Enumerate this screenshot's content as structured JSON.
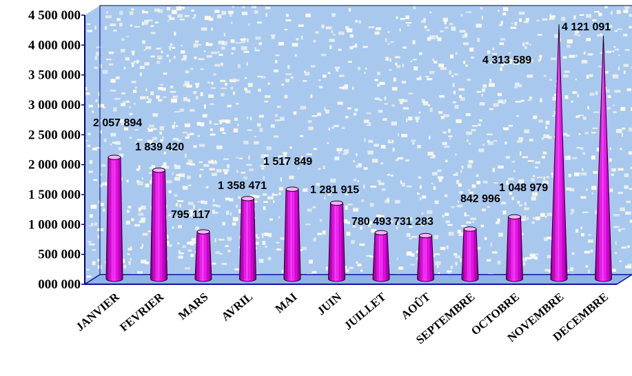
{
  "chart_data": {
    "type": "bar",
    "bar_shape": "cone-cylinder-3d",
    "colors": {
      "bar": "#ff00ff",
      "bar_dark": "#8a0a8a",
      "bar_top": "#ffb3ff",
      "wall": "#a8c8ee",
      "wall_speckle": "#fffce6",
      "floor": "#1010a0",
      "axis": "#000080"
    },
    "categories": [
      "JANVIER",
      "FEVRIER",
      "MARS",
      "AVRIL",
      "MAI",
      "JUIN",
      "JUILLET",
      "AOÛT",
      "SEPTEMBRE",
      "OCTOBRE",
      "NOVEMBRE",
      "DECEMBRE"
    ],
    "values": [
      2057894,
      1839420,
      795117,
      1358471,
      1517849,
      1281915,
      780493,
      731283,
      842996,
      1048979,
      4313589,
      4121091
    ],
    "data_labels": [
      "2 057 894",
      "1 839 420",
      "795 117",
      "1 358 471",
      "1 517 849",
      "1 281 915",
      "780 493",
      "731 283",
      "842 996",
      "1 048 979",
      "4 313 589",
      "4 121 091"
    ],
    "y_ticks": [
      "000 000",
      "500 000",
      "1 000 000",
      "1 500 000",
      "2 000 000",
      "2 500 000",
      "3 000 000",
      "3 500 000",
      "4 000 000",
      "4 500 000"
    ],
    "ylim": [
      0,
      4500000
    ],
    "grid": false,
    "legend": "none"
  }
}
